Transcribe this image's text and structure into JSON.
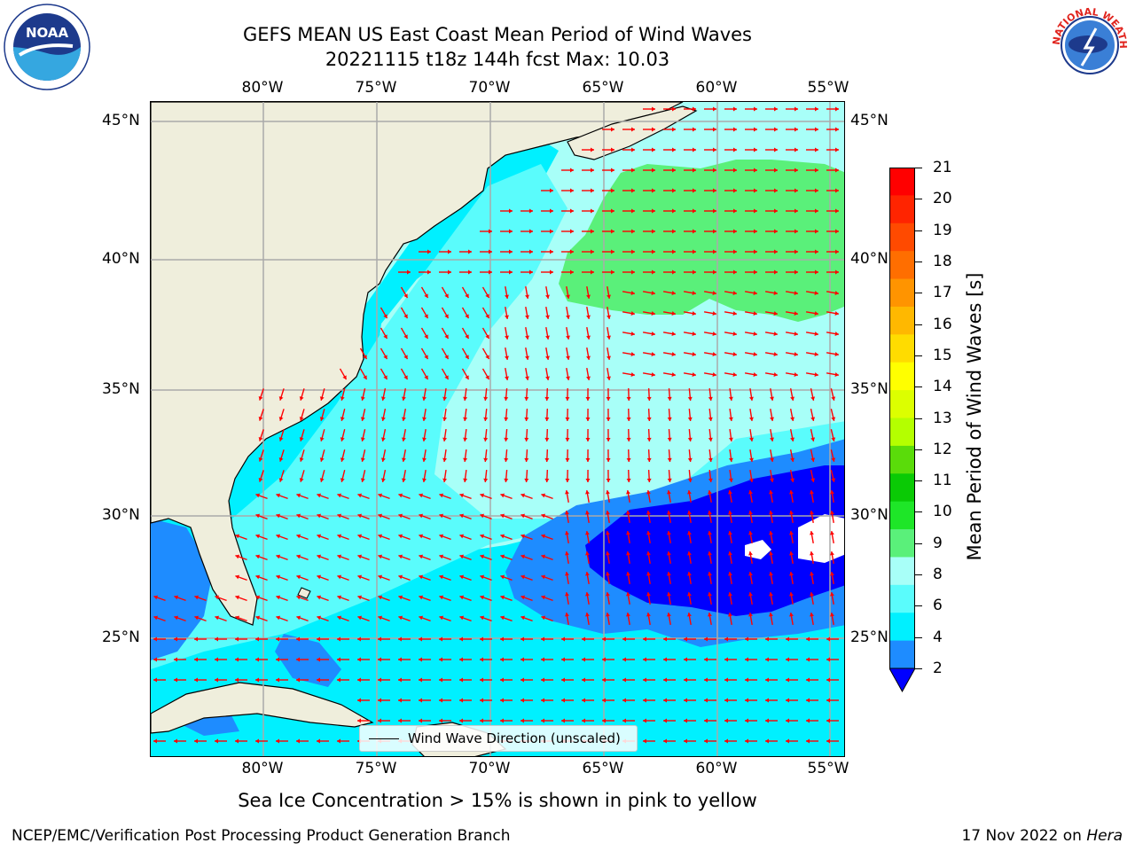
{
  "title_line1": "GEFS MEAN US East Coast Mean Period of Wind Waves",
  "title_line2": "20221115 t18z 144h fcst   Max: 10.03",
  "lon_labels": [
    "80°W",
    "75°W",
    "70°W",
    "65°W",
    "60°W",
    "55°W"
  ],
  "lat_labels": [
    "45°N",
    "40°N",
    "35°N",
    "30°N",
    "25°N"
  ],
  "colorbar": {
    "title": "Mean Period of Wind Waves [s]",
    "ticks": [
      "21",
      "20",
      "19",
      "18",
      "17",
      "16",
      "15",
      "14",
      "13",
      "12",
      "11",
      "10",
      "9",
      "8",
      "6",
      "4",
      "2"
    ],
    "colors": [
      "#ff0000",
      "#ff2400",
      "#ff4a00",
      "#ff6e00",
      "#ff9400",
      "#ffb800",
      "#ffdc00",
      "#ffff00",
      "#dcff00",
      "#b4ff00",
      "#5adc0a",
      "#0aca05",
      "#1ee628",
      "#5af07a",
      "#a8fff8",
      "#5afcfc",
      "#00f0ff",
      "#1e8cff",
      "#0000ff"
    ]
  },
  "legend_label": "Wind Wave Direction (unscaled)",
  "footer_note": "Sea Ice Concentration > 15% is shown in pink to yellow",
  "credit": "NCEP/EMC/Verification Post Processing Product Generation Branch",
  "date_text": "17 Nov 2022 on ",
  "date_host": "Hera",
  "colors": {
    "land": "#efeedc",
    "ocean_base": "#a8fff8",
    "cyan": "#00f0ff",
    "mid_cyan": "#5afcfc",
    "blue": "#1e8cff",
    "deep_blue": "#0000ff",
    "green": "#5af07a",
    "arrow": "#ff0000",
    "grid": "#aaaaaa"
  },
  "logos": {
    "left": "NOAA",
    "right": "NATIONAL WEATHER SERVICE"
  }
}
